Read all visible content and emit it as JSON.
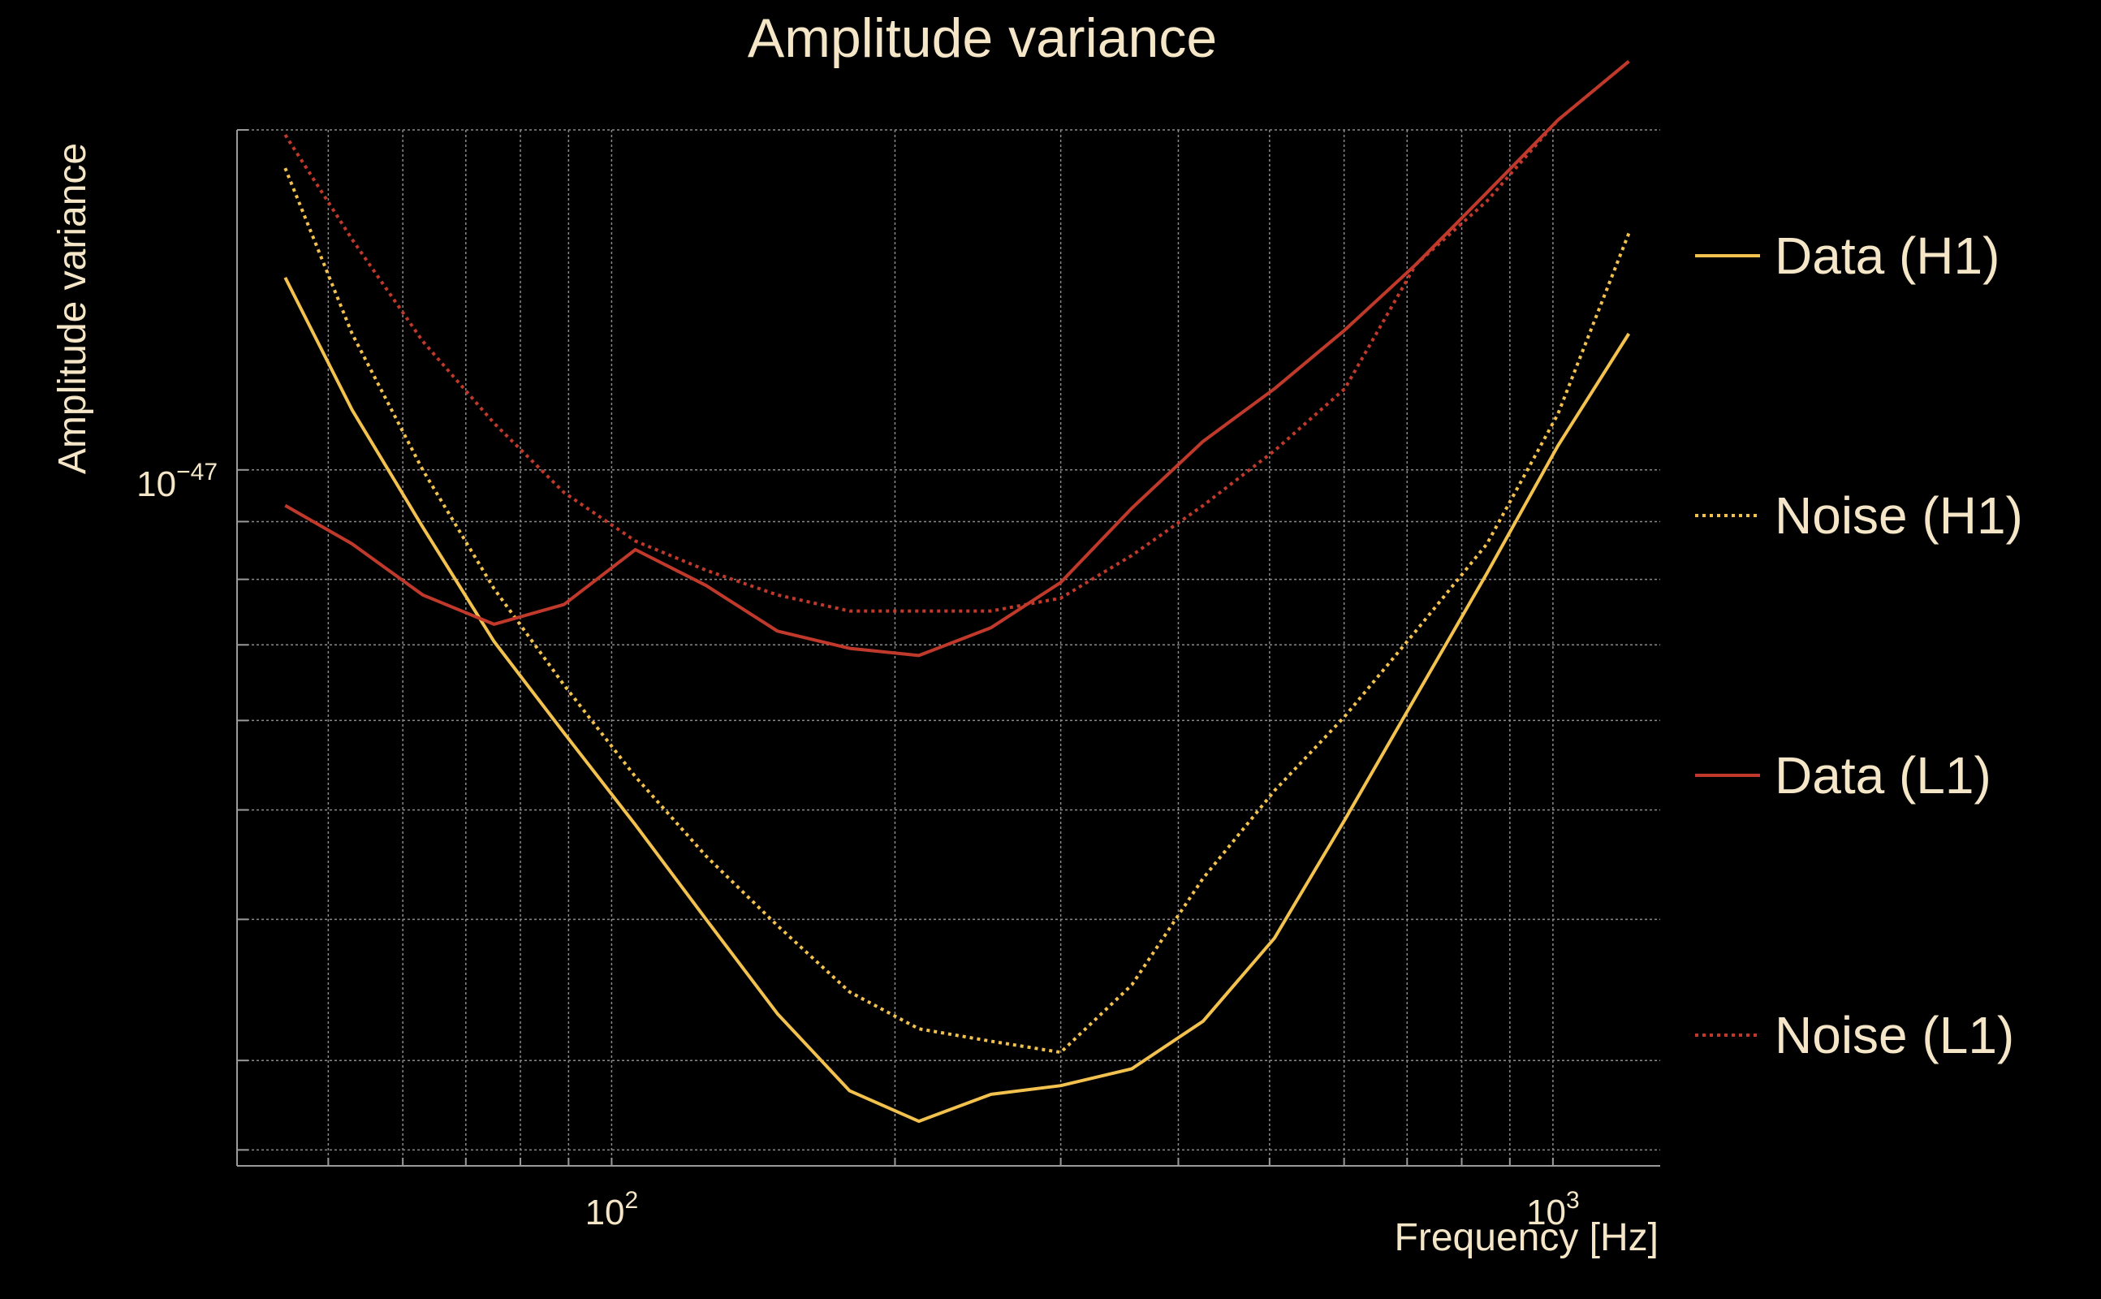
{
  "chart_data": {
    "type": "line",
    "title": "Amplitude variance",
    "xlabel": "Frequency [Hz]",
    "ylabel": "Amplitude variance",
    "xscale": "log",
    "yscale": "log",
    "xlim": [
      40,
      1300
    ],
    "ylim": [
      2.42e-48,
      2e-47
    ],
    "grid": true,
    "legend_position": "right",
    "x_ticks": [
      {
        "value": 100,
        "base": "10",
        "exp": "2"
      },
      {
        "value": 1000,
        "base": "10",
        "exp": "3"
      }
    ],
    "y_ticks": [
      {
        "value": 1e-47,
        "base": "10",
        "exp": "−47"
      }
    ],
    "x_minor_ticks": [
      40,
      50,
      60,
      70,
      80,
      90,
      200,
      300,
      400,
      500,
      600,
      700,
      800,
      900
    ],
    "y_minor_ticks": [
      2.5e-48,
      3e-48,
      4e-48,
      5e-48,
      6e-48,
      7e-48,
      8e-48,
      9e-48,
      2e-47
    ],
    "x": [
      45,
      53,
      63,
      75,
      89,
      106,
      126,
      150,
      179,
      212,
      253,
      300,
      357,
      425,
      506,
      601,
      715,
      851,
      1012,
      1204
    ],
    "series": [
      {
        "name": "Data (H1)",
        "color": "#f2c14e",
        "dash": "solid",
        "values": [
          1.48e-47,
          1.13e-47,
          8.9e-48,
          7.05e-48,
          5.85e-48,
          4.85e-48,
          4e-48,
          3.3e-48,
          2.82e-48,
          2.65e-48,
          2.8e-48,
          2.85e-48,
          2.95e-48,
          3.25e-48,
          3.85e-48,
          4.9e-48,
          6.3e-48,
          8.1e-48,
          1.05e-47,
          1.32e-47
        ]
      },
      {
        "name": "Noise (H1)",
        "color": "#f2c14e",
        "dash": "dotted",
        "values": [
          1.85e-47,
          1.32e-47,
          1e-47,
          7.85e-48,
          6.45e-48,
          5.35e-48,
          4.55e-48,
          3.95e-48,
          3.45e-48,
          3.2e-48,
          3.12e-48,
          3.05e-48,
          3.5e-48,
          4.35e-48,
          5.2e-48,
          6.05e-48,
          7.2e-48,
          8.6e-48,
          1.12e-47,
          1.62e-47
        ]
      },
      {
        "name": "Data (L1)",
        "color": "#c0392b",
        "dash": "solid",
        "values": [
          9.3e-48,
          8.6e-48,
          7.75e-48,
          7.3e-48,
          7.6e-48,
          8.5e-48,
          7.9e-48,
          7.2e-48,
          6.95e-48,
          6.85e-48,
          7.25e-48,
          7.95e-48,
          9.25e-48,
          1.06e-47,
          1.18e-47,
          1.33e-47,
          1.52e-47,
          1.76e-47,
          2.04e-47,
          2.3e-47
        ]
      },
      {
        "name": "Noise (L1)",
        "color": "#c0392b",
        "dash": "dotted",
        "values": [
          1.98e-47,
          1.6e-47,
          1.3e-47,
          1.1e-47,
          9.55e-48,
          8.65e-48,
          8.15e-48,
          7.75e-48,
          7.5e-48,
          7.5e-48,
          7.5e-48,
          7.7e-48,
          8.4e-48,
          9.3e-48,
          1.04e-47,
          1.18e-47,
          1.52e-47,
          1.73e-47,
          2.04e-47,
          2.3e-47
        ]
      }
    ]
  }
}
